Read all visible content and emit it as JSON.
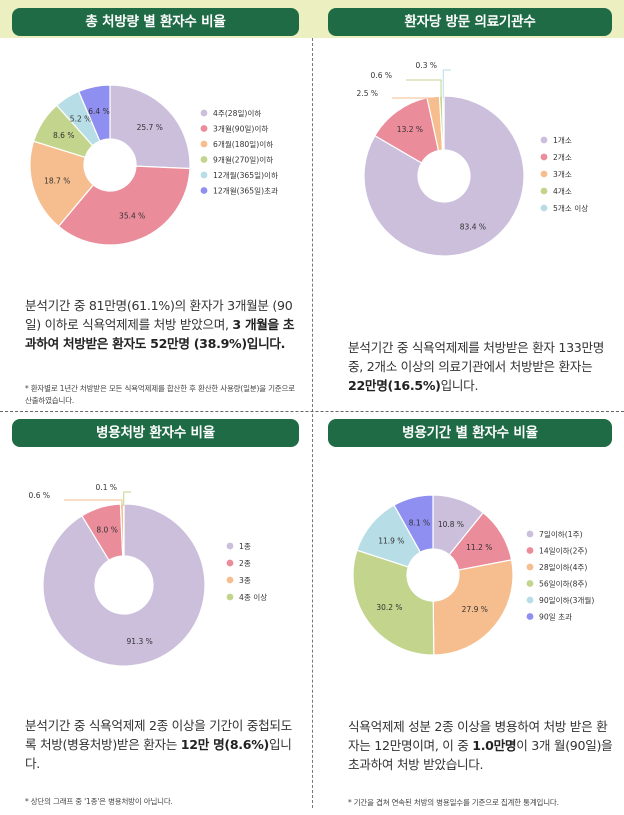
{
  "colors": {
    "header_bg": "#1f6b45",
    "top_band": "#ecefc0",
    "series": [
      "#cbbfdc",
      "#eb8c9b",
      "#f6be8f",
      "#c3d58c",
      "#b7dde6",
      "#8f8ff2"
    ]
  },
  "panels": [
    {
      "title": "총 처방량 별 환자수 비율",
      "text": {
        "p1": "분석기간 중 81만명(61.1%)의 환자가 3개월분 (90일) 이하로 식욕억제제를 처방 받았으며, ",
        "b1": "3 개월을 초과하여 처방받은 환자도 52만명 (38.9%)입니다.",
        "p2": ""
      },
      "note": "* 환자별로 1년간 처방받은 모든 식욕억제제를 합산한 후 환산한 사용량(일분)을 기준으로 산출하였습니다."
    },
    {
      "title": "환자당 방문 의료기관수",
      "text": {
        "p1": "분석기간 중 식욕억제제를 처방받은 환자 133만명 중, 2개소 이상의 의료기관에서 처방받은 환자는 ",
        "b1": "22만명(16.5%)",
        "p2": "입니다."
      },
      "note": ""
    },
    {
      "title": "병용처방 환자수 비율",
      "text": {
        "p1": "분석기간 중 식욕억제제 2종 이상을 기간이 중첩되도록 처방(병용처방)받은 환자는 ",
        "b1": "12만 명(8.6%)",
        "p2": "입니다."
      },
      "note": "* 상단의 그래프 중 '1종'은 병용처방이 아닙니다."
    },
    {
      "title": "병용기간 별 환자수 비율",
      "text": {
        "p1": "식욕억제제 성분 2종 이상을 병용하여 처방 받은 환자는 12만명이며, 이 중 ",
        "b1": "1.0만명",
        "p2": "이 3개 월(90일)을 초과하여 처방 받았습니다."
      },
      "note": "* 기간을 겹쳐 연속된 처방의 병용일수를 기준으로 집계한 통계입니다."
    }
  ],
  "chart_data": [
    {
      "type": "pie",
      "title": "총 처방량 별 환자수 비율",
      "categories": [
        "4주(28일)이하",
        "3개월(90일)이하",
        "6개월(180일)이하",
        "9개월(270일)이하",
        "12개월(365일)이하",
        "12개월(365일)초과"
      ],
      "values": [
        25.7,
        35.4,
        18.7,
        8.6,
        5.2,
        6.4
      ],
      "labels": [
        "25.7 %",
        "35.4 %",
        "18.7 %",
        "8.6 %",
        "5.2 %",
        "6.4 %"
      ],
      "legend": "right"
    },
    {
      "type": "pie",
      "title": "환자당 방문 의료기관수",
      "categories": [
        "1개소",
        "2개소",
        "3개소",
        "4개소",
        "5개소 이상"
      ],
      "values": [
        83.4,
        13.2,
        2.5,
        0.6,
        0.3
      ],
      "labels": [
        "83.4 %",
        "13.2 %",
        "2.5 %",
        "0.6 %",
        "0.3 %"
      ],
      "legend": "right"
    },
    {
      "type": "pie",
      "title": "병용처방 환자수 비율",
      "categories": [
        "1종",
        "2종",
        "3종",
        "4종 이상"
      ],
      "values": [
        91.3,
        8.0,
        0.6,
        0.1
      ],
      "labels": [
        "91.3 %",
        "8.0 %",
        "0.6 %",
        "0.1 %"
      ],
      "legend": "right"
    },
    {
      "type": "pie",
      "title": "병용기간 별 환자수 비율",
      "categories": [
        "7일이하(1주)",
        "14일이하(2주)",
        "28일이하(4주)",
        "56일이하(8주)",
        "90일이하(3개월)",
        "90일 초과"
      ],
      "values": [
        10.8,
        11.2,
        27.9,
        30.2,
        11.9,
        8.1
      ],
      "labels": [
        "10.8 %",
        "11.2 %",
        "27.9 %",
        "30.2 %",
        "11.9 %",
        "8.1 %"
      ],
      "legend": "right"
    }
  ]
}
